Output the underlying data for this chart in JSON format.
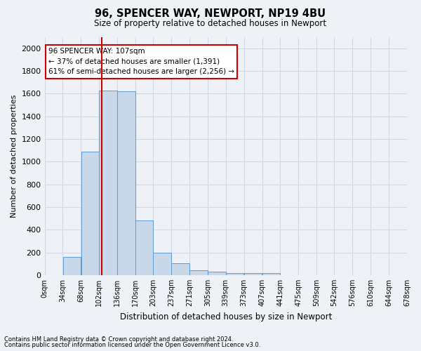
{
  "title1": "96, SPENCER WAY, NEWPORT, NP19 4BU",
  "title2": "Size of property relative to detached houses in Newport",
  "xlabel": "Distribution of detached houses by size in Newport",
  "ylabel": "Number of detached properties",
  "footnote1": "Contains HM Land Registry data © Crown copyright and database right 2024.",
  "footnote2": "Contains public sector information licensed under the Open Government Licence v3.0.",
  "annotation_line1": "96 SPENCER WAY: 107sqm",
  "annotation_line2": "← 37% of detached houses are smaller (1,391)",
  "annotation_line3": "61% of semi-detached houses are larger (2,256) →",
  "bar_color": "#c8d8e8",
  "bar_edge_color": "#5b9bd5",
  "grid_color": "#d0d8e8",
  "vline_color": "#cc0000",
  "vline_x": 107,
  "bin_edges": [
    0,
    34,
    68,
    102,
    136,
    170,
    203,
    237,
    271,
    305,
    339,
    373,
    407,
    441,
    475,
    509,
    542,
    576,
    610,
    644,
    678
  ],
  "bar_heights": [
    0,
    160,
    1090,
    1625,
    1620,
    480,
    200,
    105,
    45,
    30,
    20,
    20,
    20,
    0,
    0,
    0,
    0,
    0,
    0,
    0
  ],
  "ylim": [
    0,
    2100
  ],
  "yticks": [
    0,
    200,
    400,
    600,
    800,
    1000,
    1200,
    1400,
    1600,
    1800,
    2000
  ],
  "bg_color": "#eef2f7",
  "annotation_box_color": "#ffffff",
  "annotation_box_edge": "#cc0000"
}
